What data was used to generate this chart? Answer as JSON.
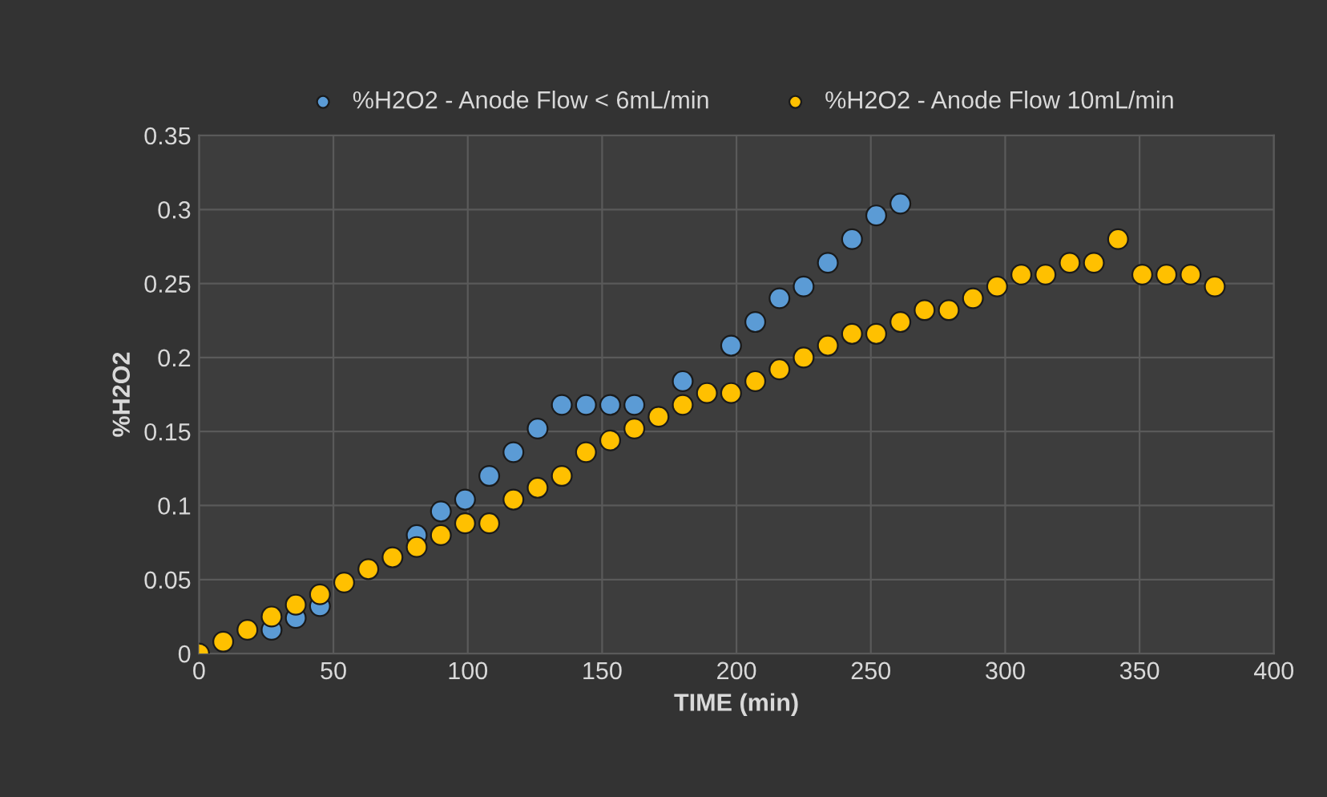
{
  "chart_data": {
    "type": "scatter",
    "xlabel": "TIME (min)",
    "ylabel": "%H2O2",
    "xlim": [
      0,
      400
    ],
    "xticks": [
      0,
      50,
      100,
      150,
      200,
      250,
      300,
      350,
      400
    ],
    "ylim": [
      0,
      0.35
    ],
    "yticks": [
      0,
      0.05,
      0.1,
      0.15,
      0.2,
      0.25,
      0.3,
      0.35
    ],
    "grid": true,
    "legend": "top",
    "marker": "circle",
    "series": [
      {
        "name": "%H2O2 - Anode Flow < 6mL/min",
        "color": "#5b9bd5",
        "x": [
          27,
          36,
          45,
          81,
          90,
          99,
          108,
          117,
          126,
          135,
          144,
          153,
          162,
          180,
          198,
          207,
          216,
          225,
          234,
          243,
          252,
          261
        ],
        "values": [
          0.016,
          0.024,
          0.032,
          0.08,
          0.096,
          0.104,
          0.12,
          0.136,
          0.152,
          0.168,
          0.168,
          0.168,
          0.168,
          0.184,
          0.208,
          0.224,
          0.24,
          0.248,
          0.264,
          0.28,
          0.296,
          0.304
        ]
      },
      {
        "name": "%H2O2 - Anode Flow 10mL/min",
        "color": "#ffc000",
        "x": [
          0,
          9,
          18,
          27,
          36,
          45,
          54,
          63,
          72,
          81,
          90,
          99,
          108,
          117,
          126,
          135,
          144,
          153,
          162,
          171,
          180,
          189,
          198,
          207,
          216,
          225,
          234,
          243,
          252,
          261,
          270,
          279,
          288,
          297,
          306,
          315,
          324,
          333,
          342,
          351,
          360,
          369,
          378
        ],
        "values": [
          0,
          0.008,
          0.016,
          0.025,
          0.033,
          0.04,
          0.048,
          0.057,
          0.065,
          0.072,
          0.08,
          0.088,
          0.088,
          0.104,
          0.112,
          0.12,
          0.136,
          0.144,
          0.152,
          0.16,
          0.168,
          0.176,
          0.176,
          0.184,
          0.192,
          0.2,
          0.208,
          0.216,
          0.216,
          0.224,
          0.232,
          0.232,
          0.24,
          0.248,
          0.256,
          0.256,
          0.264,
          0.264,
          0.28,
          0.256,
          0.256,
          0.256,
          0.248
        ]
      }
    ]
  }
}
